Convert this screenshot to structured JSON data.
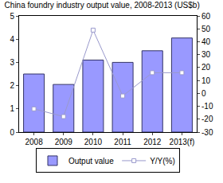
{
  "chart_data": {
    "type": "bar",
    "title": "China foundry industry output value, 2008-2013 (US$b)",
    "categories": [
      "2008",
      "2009",
      "2010",
      "2011",
      "2012",
      "2013(f)"
    ],
    "series": [
      {
        "name": "Output value",
        "type": "bar",
        "color": "#9999ff",
        "values": [
          2.5,
          2.05,
          3.1,
          3.0,
          3.5,
          4.05
        ]
      },
      {
        "name": "Y/Y(%)",
        "type": "line",
        "axis": "y2",
        "color": "#9999cc",
        "marker": "square",
        "values": [
          -12,
          -18,
          49,
          -2,
          16,
          16
        ]
      }
    ],
    "ylim": [
      0,
      5
    ],
    "yticks": [
      0,
      1,
      2,
      3,
      4,
      5
    ],
    "y2lim": [
      -30,
      60
    ],
    "y2ticks": [
      -30,
      -20,
      -10,
      0,
      10,
      20,
      30,
      40,
      50,
      60
    ],
    "grid": false,
    "legend": "bottom"
  }
}
